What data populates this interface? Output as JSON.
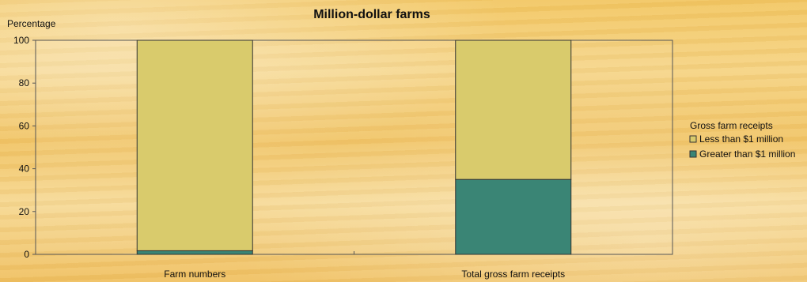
{
  "chart_data": {
    "type": "bar",
    "stacked": true,
    "title": "Million-dollar farms",
    "ylabel": "Percentage",
    "xlabel": "",
    "ylim": [
      0,
      100
    ],
    "yticks": [
      0,
      20,
      40,
      60,
      80,
      100
    ],
    "categories": [
      "Farm numbers",
      "Total gross farm receipts"
    ],
    "legend_title": "Gross farm receipts",
    "legend_position": "right",
    "series": [
      {
        "name": "Greater than $1 million",
        "values": [
          1.7,
          35
        ],
        "color": "#3a8575"
      },
      {
        "name": "Less than $1 million",
        "values": [
          98.3,
          65
        ],
        "color": "#d9cb6c"
      }
    ],
    "legend_order": [
      1,
      0
    ],
    "grid": false
  }
}
